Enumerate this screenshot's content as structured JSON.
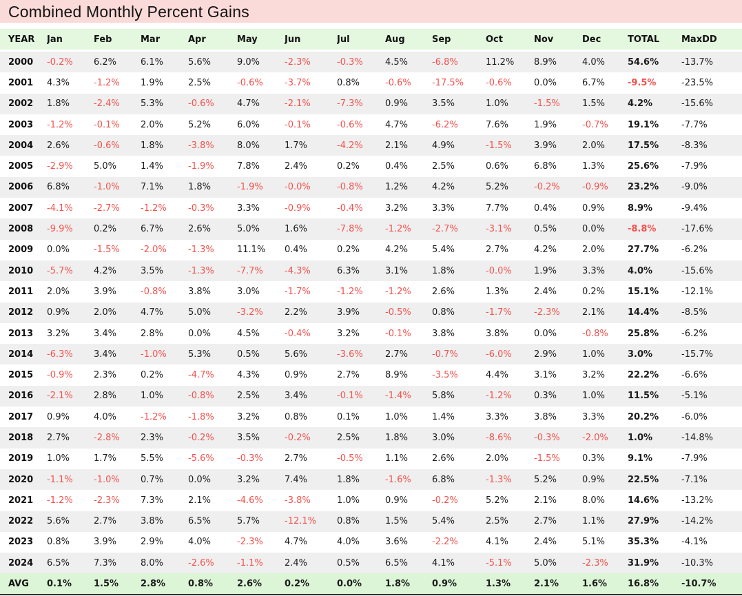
{
  "title": "Combined Monthly Percent Gains",
  "colors": {
    "title_bg": "#fbdbd9",
    "header_bg": "#e3f8de",
    "avg_bg": "#dcf5d7",
    "row_alt_bg": "#efefef",
    "negative": "#f2524d",
    "text": "#1c1c1c"
  },
  "chart_data": {
    "type": "table",
    "title": "Combined Monthly Percent Gains",
    "columns": [
      "YEAR",
      "Jan",
      "Feb",
      "Mar",
      "Apr",
      "May",
      "Jun",
      "Jul",
      "Aug",
      "Sep",
      "Oct",
      "Nov",
      "Dec",
      "TOTAL",
      "MaxDD"
    ],
    "rows": [
      [
        "2000",
        "-0.2%",
        "6.2%",
        "6.1%",
        "5.6%",
        "9.0%",
        "-2.3%",
        "-0.3%",
        "4.5%",
        "-6.8%",
        "11.2%",
        "8.9%",
        "4.0%",
        "54.6%",
        "-13.7%"
      ],
      [
        "2001",
        "4.3%",
        "-1.2%",
        "1.9%",
        "2.5%",
        "-0.6%",
        "-3.7%",
        "0.8%",
        "-0.6%",
        "-17.5%",
        "-0.6%",
        "0.0%",
        "6.7%",
        "-9.5%",
        "-23.5%"
      ],
      [
        "2002",
        "1.8%",
        "-2.4%",
        "5.3%",
        "-0.6%",
        "4.7%",
        "-2.1%",
        "-7.3%",
        "0.9%",
        "3.5%",
        "1.0%",
        "-1.5%",
        "1.5%",
        "4.2%",
        "-15.6%"
      ],
      [
        "2003",
        "-1.2%",
        "-0.1%",
        "2.0%",
        "5.2%",
        "6.0%",
        "-0.1%",
        "-0.6%",
        "4.7%",
        "-6.2%",
        "7.6%",
        "1.9%",
        "-0.7%",
        "19.1%",
        "-7.7%"
      ],
      [
        "2004",
        "2.6%",
        "-0.6%",
        "1.8%",
        "-3.8%",
        "8.0%",
        "1.7%",
        "-4.2%",
        "2.1%",
        "4.9%",
        "-1.5%",
        "3.9%",
        "2.0%",
        "17.5%",
        "-8.3%"
      ],
      [
        "2005",
        "-2.9%",
        "5.0%",
        "1.4%",
        "-1.9%",
        "7.8%",
        "2.4%",
        "0.2%",
        "0.4%",
        "2.5%",
        "0.6%",
        "6.8%",
        "1.3%",
        "25.6%",
        "-7.9%"
      ],
      [
        "2006",
        "6.8%",
        "-1.0%",
        "7.1%",
        "1.8%",
        "-1.9%",
        "-0.0%",
        "-0.8%",
        "1.2%",
        "4.2%",
        "5.2%",
        "-0.2%",
        "-0.9%",
        "23.2%",
        "-9.0%"
      ],
      [
        "2007",
        "-4.1%",
        "-2.7%",
        "-1.2%",
        "-0.3%",
        "3.3%",
        "-0.9%",
        "-0.4%",
        "3.2%",
        "3.3%",
        "7.7%",
        "0.4%",
        "0.9%",
        "8.9%",
        "-9.4%"
      ],
      [
        "2008",
        "-9.9%",
        "0.2%",
        "6.7%",
        "2.6%",
        "5.0%",
        "1.6%",
        "-7.8%",
        "-1.2%",
        "-2.7%",
        "-3.1%",
        "0.5%",
        "0.0%",
        "-8.8%",
        "-17.6%"
      ],
      [
        "2009",
        "0.0%",
        "-1.5%",
        "-2.0%",
        "-1.3%",
        "11.1%",
        "0.4%",
        "0.2%",
        "4.2%",
        "5.4%",
        "2.7%",
        "4.2%",
        "2.0%",
        "27.7%",
        "-6.2%"
      ],
      [
        "2010",
        "-5.7%",
        "4.2%",
        "3.5%",
        "-1.3%",
        "-7.7%",
        "-4.3%",
        "6.3%",
        "3.1%",
        "1.8%",
        "-0.0%",
        "1.9%",
        "3.3%",
        "4.0%",
        "-15.6%"
      ],
      [
        "2011",
        "2.0%",
        "3.9%",
        "-0.8%",
        "3.8%",
        "3.0%",
        "-1.7%",
        "-1.2%",
        "-1.2%",
        "2.6%",
        "1.3%",
        "2.4%",
        "0.2%",
        "15.1%",
        "-12.1%"
      ],
      [
        "2012",
        "0.9%",
        "2.0%",
        "4.7%",
        "5.0%",
        "-3.2%",
        "2.2%",
        "3.9%",
        "-0.5%",
        "0.8%",
        "-1.7%",
        "-2.3%",
        "2.1%",
        "14.4%",
        "-8.5%"
      ],
      [
        "2013",
        "3.2%",
        "3.4%",
        "2.8%",
        "0.0%",
        "4.5%",
        "-0.4%",
        "3.2%",
        "-0.1%",
        "3.8%",
        "3.8%",
        "0.0%",
        "-0.8%",
        "25.8%",
        "-6.2%"
      ],
      [
        "2014",
        "-6.3%",
        "3.4%",
        "-1.0%",
        "5.3%",
        "0.5%",
        "5.6%",
        "-3.6%",
        "2.7%",
        "-0.7%",
        "-6.0%",
        "2.9%",
        "1.0%",
        "3.0%",
        "-15.7%"
      ],
      [
        "2015",
        "-0.9%",
        "2.3%",
        "0.2%",
        "-4.7%",
        "4.3%",
        "0.9%",
        "2.7%",
        "8.9%",
        "-3.5%",
        "4.4%",
        "3.1%",
        "3.2%",
        "22.2%",
        "-6.6%"
      ],
      [
        "2016",
        "-2.1%",
        "2.8%",
        "1.0%",
        "-0.8%",
        "2.5%",
        "3.4%",
        "-0.1%",
        "-1.4%",
        "5.8%",
        "-1.2%",
        "0.3%",
        "1.0%",
        "11.5%",
        "-5.1%"
      ],
      [
        "2017",
        "0.9%",
        "4.0%",
        "-1.2%",
        "-1.8%",
        "3.2%",
        "0.8%",
        "0.1%",
        "1.0%",
        "1.4%",
        "3.3%",
        "3.8%",
        "3.3%",
        "20.2%",
        "-6.0%"
      ],
      [
        "2018",
        "2.7%",
        "-2.8%",
        "2.3%",
        "-0.2%",
        "3.5%",
        "-0.2%",
        "2.5%",
        "1.8%",
        "3.0%",
        "-8.6%",
        "-0.3%",
        "-2.0%",
        "1.0%",
        "-14.8%"
      ],
      [
        "2019",
        "1.0%",
        "1.7%",
        "5.5%",
        "-5.6%",
        "-0.3%",
        "2.7%",
        "-0.5%",
        "1.1%",
        "2.6%",
        "2.0%",
        "-1.5%",
        "0.3%",
        "9.1%",
        "-7.9%"
      ],
      [
        "2020",
        "-1.1%",
        "-1.0%",
        "0.7%",
        "0.0%",
        "3.2%",
        "7.4%",
        "1.8%",
        "-1.6%",
        "6.8%",
        "-1.3%",
        "5.2%",
        "0.9%",
        "22.5%",
        "-7.1%"
      ],
      [
        "2021",
        "-1.2%",
        "-2.3%",
        "7.3%",
        "2.1%",
        "-4.6%",
        "-3.8%",
        "1.0%",
        "0.9%",
        "-0.2%",
        "5.2%",
        "2.1%",
        "8.0%",
        "14.6%",
        "-13.2%"
      ],
      [
        "2022",
        "5.6%",
        "2.7%",
        "3.8%",
        "6.5%",
        "5.7%",
        "-12.1%",
        "0.8%",
        "1.5%",
        "5.4%",
        "2.5%",
        "2.7%",
        "1.1%",
        "27.9%",
        "-14.2%"
      ],
      [
        "2023",
        "0.8%",
        "3.9%",
        "2.9%",
        "4.0%",
        "-2.3%",
        "4.7%",
        "4.0%",
        "3.6%",
        "-2.2%",
        "4.1%",
        "2.4%",
        "5.1%",
        "35.3%",
        "-4.1%"
      ],
      [
        "2024",
        "6.5%",
        "7.3%",
        "8.0%",
        "-2.6%",
        "-1.1%",
        "2.4%",
        "0.5%",
        "6.5%",
        "4.1%",
        "-5.1%",
        "5.0%",
        "-2.3%",
        "31.9%",
        "-10.3%"
      ]
    ],
    "avg": [
      "AVG",
      "0.1%",
      "1.5%",
      "2.8%",
      "0.8%",
      "2.6%",
      "0.2%",
      "0.0%",
      "1.8%",
      "0.9%",
      "1.3%",
      "2.1%",
      "1.6%",
      "16.8%",
      "-10.7%"
    ]
  }
}
